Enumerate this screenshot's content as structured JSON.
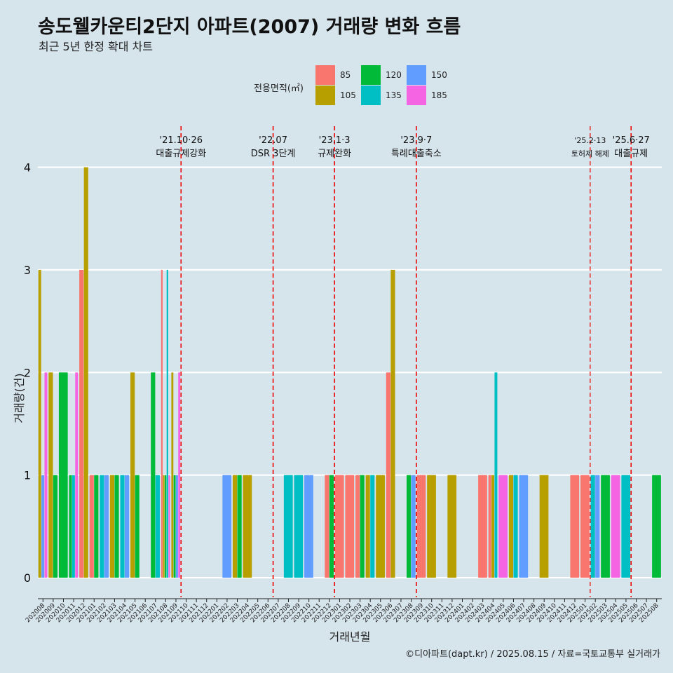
{
  "title": "송도웰카운티2단지 아파트(2007) 거래량 변화 흐름",
  "subtitle": "최근 5년 한정 확대 차트",
  "caption": "©디아파트(dapt.kr) / 2025.08.15 / 자료=국토교통부 실거래가",
  "legend": {
    "title": "전용면적(㎡)",
    "items": [
      {
        "label": "85",
        "color": "#f8766d"
      },
      {
        "label": "105",
        "color": "#b79f00"
      },
      {
        "label": "120",
        "color": "#00ba38"
      },
      {
        "label": "135",
        "color": "#00bfc4"
      },
      {
        "label": "150",
        "color": "#619cff"
      },
      {
        "label": "185",
        "color": "#f564e3"
      }
    ]
  },
  "chart_data": {
    "type": "bar",
    "xlabel": "거래년월",
    "ylabel": "거래량(건)",
    "ylim": [
      0,
      4
    ],
    "yticks": [
      0,
      1,
      2,
      3,
      4
    ],
    "grid": true,
    "legend_position": "top",
    "categories": [
      "202008",
      "202009",
      "202010",
      "202011",
      "202012",
      "202101",
      "202102",
      "202103",
      "202104",
      "202105",
      "202106",
      "202107",
      "202108",
      "202109",
      "202110",
      "202111",
      "202112",
      "202201",
      "202202",
      "202203",
      "202204",
      "202205",
      "202206",
      "202207",
      "202208",
      "202209",
      "202210",
      "202211",
      "202212",
      "202301",
      "202302",
      "202303",
      "202304",
      "202305",
      "202306",
      "202307",
      "202308",
      "202309",
      "202310",
      "202311",
      "202312",
      "202401",
      "202402",
      "202403",
      "202404",
      "202405",
      "202406",
      "202407",
      "202408",
      "202409",
      "202410",
      "202411",
      "202412",
      "202501",
      "202502",
      "202503",
      "202504",
      "202505",
      "202506",
      "202507",
      "202508"
    ],
    "series": [
      {
        "name": "85",
        "color": "#f8766d",
        "values": {
          "202012": 3,
          "202101": 1,
          "202108": 3,
          "202212": 1,
          "202301": 1,
          "202302": 1,
          "202303": 1,
          "202306": 2,
          "202309": 1,
          "202403": 1,
          "202404": 1,
          "202412": 1,
          "202501": 1
        }
      },
      {
        "name": "105",
        "color": "#b79f00",
        "values": {
          "202008": 3,
          "202009": 2,
          "202012": 4,
          "202103": 1,
          "202105": 2,
          "202108": 1,
          "202109": 2,
          "202203": 1,
          "202204": 1,
          "202304": 1,
          "202305": 1,
          "202306": 3,
          "202310": 1,
          "202312": 1,
          "202404": 1,
          "202406": 1,
          "202409": 1
        }
      },
      {
        "name": "120",
        "color": "#00ba38",
        "values": {
          "202009": 1,
          "202010": 2,
          "202011": 1,
          "202101": 1,
          "202103": 1,
          "202105": 1,
          "202107": 2,
          "202108": 1,
          "202109": 1,
          "202203": 1,
          "202212": 1,
          "202303": 1,
          "202308": 1,
          "202503": 1,
          "202508": 1
        }
      },
      {
        "name": "135",
        "color": "#00bfc4",
        "values": {
          "202011": 1,
          "202102": 1,
          "202104": 1,
          "202107": 1,
          "202108": 3,
          "202208": 1,
          "202209": 1,
          "202304": 1,
          "202404": 2,
          "202406": 1,
          "202502": 1,
          "202505": 1
        }
      },
      {
        "name": "150",
        "color": "#619cff",
        "values": {
          "202008": 1,
          "202102": 1,
          "202104": 1,
          "202109": 1,
          "202202": 1,
          "202210": 1,
          "202308": 1,
          "202407": 1,
          "202502": 1
        }
      },
      {
        "name": "185",
        "color": "#f564e3",
        "values": {
          "202008": 2,
          "202011": 2,
          "202108": 1,
          "202109": 2,
          "202405": 1,
          "202504": 1
        }
      }
    ],
    "events": [
      {
        "line1": "'21.10·26",
        "line2": "대출규제강화",
        "after": "202110",
        "small": false
      },
      {
        "line1": "'22.07",
        "line2": "DSR 3단계",
        "after": "202207",
        "small": false
      },
      {
        "line1": "'23.1·3",
        "line2": "규제완화",
        "after": "202301",
        "small": false
      },
      {
        "line1": "'23.9·7",
        "line2": "특례대출축소",
        "after": "202309",
        "small": false
      },
      {
        "line1": "'25.2·13",
        "line2": "토허제 해제",
        "after": "202502",
        "small": true
      },
      {
        "line1": "'25.6·27",
        "line2": "대출규제",
        "after": "202506",
        "small": false
      }
    ]
  }
}
